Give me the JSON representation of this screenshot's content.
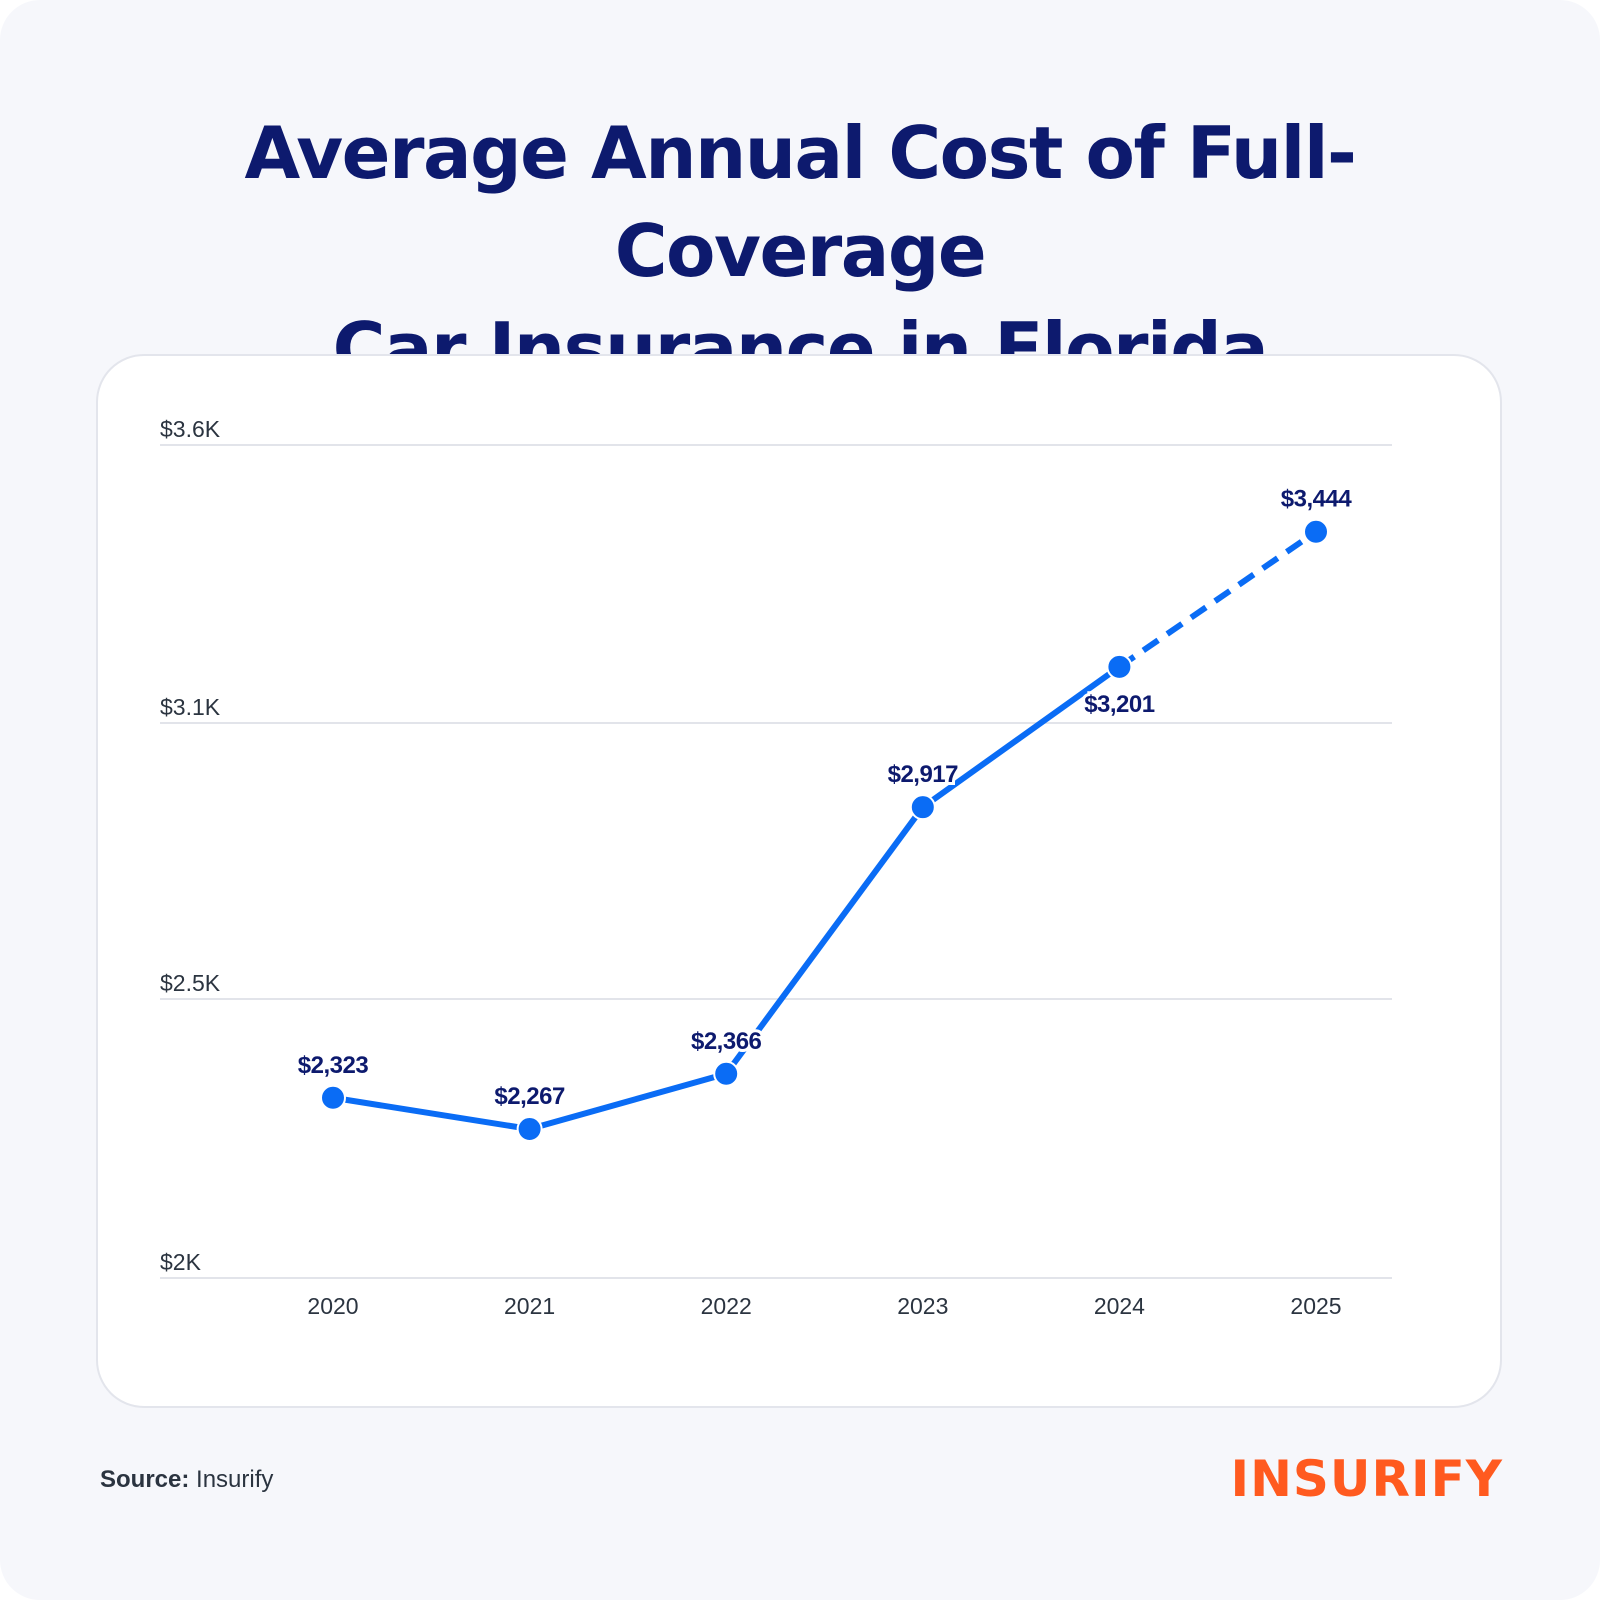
{
  "header": {
    "title_line1": "Average Annual Cost of Full-Coverage",
    "title_line2": "Car Insurance in Florida"
  },
  "footer": {
    "source_label": "Source:",
    "source_value": "Insurify",
    "logo_text": "INSURIFY"
  },
  "colors": {
    "title": "#0d1a6e",
    "line": "#0a6cf5",
    "data_label": "#0d1a6e",
    "grid": "#d9dce3",
    "logo": "#ff5a1f"
  },
  "chart_data": {
    "type": "line",
    "categories": [
      "2020",
      "2021",
      "2022",
      "2023",
      "2024",
      "2025"
    ],
    "values": [
      2323,
      2267,
      2366,
      2917,
      3201,
      3444
    ],
    "data_labels": [
      "$2,323",
      "$2,267",
      "$2,366",
      "$2,917",
      "$3,201",
      "$3,444"
    ],
    "dashed_from_category": "2024",
    "y_ticks": [
      2000,
      2500,
      3100,
      3600
    ],
    "y_tick_labels": [
      "$2K",
      "$2.5K",
      "$3.1K",
      "$3.6K"
    ],
    "ylim": [
      2000,
      3600
    ],
    "grid": true,
    "legend": "none",
    "title": "",
    "xlabel": "",
    "ylabel": ""
  }
}
